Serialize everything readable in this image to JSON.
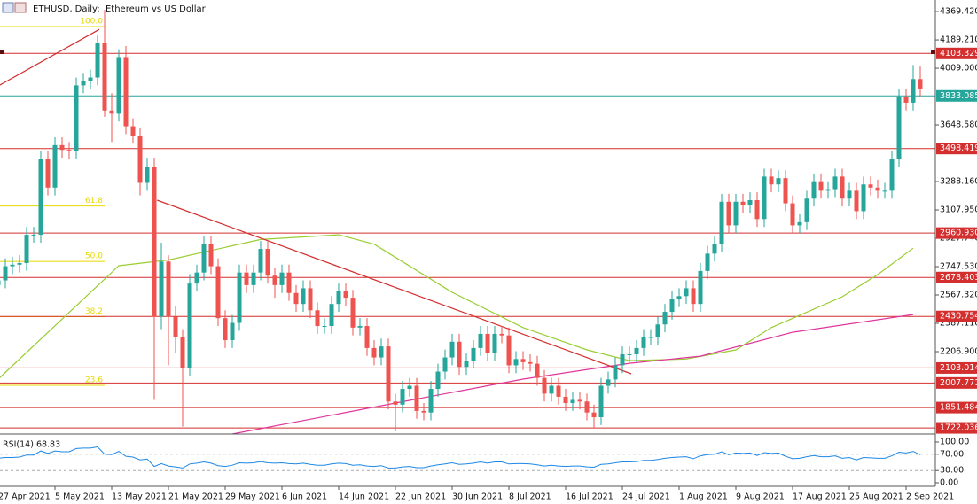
{
  "chart_data": {
    "type": "candlestick",
    "title": "ETHUSD, Daily:  Ethereum vs US Dollar",
    "bull_color": "#26a69a",
    "bear_color": "#ef5350",
    "xlim": [
      0.25,
      132.125
    ],
    "ylim": [
      1683,
      4443
    ],
    "xticks": [
      {
        "value": 0,
        "label": "27 Apr 2021"
      },
      {
        "value": 8,
        "label": "5 May 2021"
      },
      {
        "value": 16,
        "label": "13 May 2021"
      },
      {
        "value": 24,
        "label": "21 May 2021"
      },
      {
        "value": 32,
        "label": "29 May 2021"
      },
      {
        "value": 40,
        "label": "6 Jun 2021"
      },
      {
        "value": 48,
        "label": "14 Jun 2021"
      },
      {
        "value": 56,
        "label": "22 Jun 2021"
      },
      {
        "value": 64,
        "label": "30 Jun 2021"
      },
      {
        "value": 72,
        "label": "8 Jul 2021"
      },
      {
        "value": 80,
        "label": "16 Jul 2021"
      },
      {
        "value": 88,
        "label": "24 Jul 2021"
      },
      {
        "value": 96,
        "label": "1 Aug 2021"
      },
      {
        "value": 104,
        "label": "9 Aug 2021"
      },
      {
        "value": 112,
        "label": "17 Aug 2021"
      },
      {
        "value": 120,
        "label": "25 Aug 2021"
      },
      {
        "value": 128,
        "label": "2 Sep 2021"
      }
    ],
    "yticks": [
      {
        "value": 4369.42,
        "label": "4369.420"
      },
      {
        "value": 4189.21,
        "label": "4189.210"
      },
      {
        "value": 4009,
        "label": "4009.000"
      },
      {
        "value": 3648.58,
        "label": "3648.580"
      },
      {
        "value": 3288.16,
        "label": "3288.160"
      },
      {
        "value": 3107.95,
        "label": "3107.950"
      },
      {
        "value": 2927.74,
        "label": "2927.740"
      },
      {
        "value": 2747.53,
        "label": "2747.530"
      },
      {
        "value": 2567.32,
        "label": "2567.320"
      },
      {
        "value": 2387.11,
        "label": "2387.110"
      },
      {
        "value": 2206.9,
        "label": "2206.900"
      }
    ],
    "open": [
      2630,
      2660,
      2750,
      2760,
      2770,
      2950,
      2950,
      3430,
      3250,
      3520,
      3490,
      3480,
      3900,
      3930,
      3950,
      4170,
      3740,
      3720,
      4080,
      3640,
      3580,
      3280,
      3380,
      2430,
      2780,
      2430,
      2300,
      2100,
      2640,
      2710,
      2890,
      2750,
      2420,
      2280,
      2390,
      2710,
      2630,
      2710,
      2860,
      2690,
      2630,
      2710,
      2580,
      2510,
      2610,
      2470,
      2370,
      2370,
      2510,
      2590,
      2550,
      2360,
      2370,
      2230,
      2170,
      2240,
      1890,
      1870,
      1970,
      1990,
      1830,
      1820,
      1970,
      2080,
      2170,
      2270,
      2110,
      2150,
      2230,
      2320,
      2200,
      2320,
      2310,
      2120,
      2160,
      2140,
      2130,
      2040,
      1940,
      1990,
      1920,
      1880,
      1900,
      1890,
      1820,
      1790,
      1990,
      2030,
      2120,
      2190,
      2190,
      2230,
      2300,
      2300,
      2380,
      2460,
      2540,
      2560,
      2610,
      2510,
      2720,
      2830,
      2890,
      3160,
      3010,
      3160,
      3140,
      3170,
      3050,
      3320,
      3270,
      3310,
      3150,
      3010,
      3030,
      3180,
      3290,
      3230,
      3240,
      3320,
      3180,
      3230,
      3100,
      3270,
      3250,
      3230,
      3230,
      3430,
      3830,
      3790,
      3940
    ],
    "high": [
      2710,
      2800,
      2810,
      2820,
      3000,
      3000,
      3480,
      3480,
      3570,
      3570,
      3540,
      3950,
      3980,
      4000,
      4220,
      4380,
      3850,
      4130,
      4150,
      3690,
      3630,
      3440,
      3440,
      2900,
      2820,
      2500,
      2350,
      2700,
      2760,
      2940,
      2940,
      2800,
      2470,
      2440,
      2760,
      2760,
      2760,
      2910,
      2910,
      2740,
      2760,
      2760,
      2630,
      2660,
      2660,
      2520,
      2420,
      2560,
      2640,
      2640,
      2600,
      2420,
      2420,
      2280,
      2290,
      2290,
      1940,
      2020,
      2040,
      2040,
      1880,
      2020,
      2130,
      2220,
      2320,
      2320,
      2200,
      2280,
      2370,
      2370,
      2370,
      2370,
      2360,
      2210,
      2210,
      2190,
      2180,
      2090,
      2040,
      2040,
      1970,
      1950,
      1950,
      1940,
      1870,
      2040,
      2080,
      2170,
      2240,
      2240,
      2280,
      2350,
      2350,
      2430,
      2510,
      2590,
      2610,
      2660,
      2660,
      2770,
      2880,
      2940,
      3210,
      3210,
      3210,
      3210,
      3220,
      3220,
      3370,
      3370,
      3360,
      3360,
      3200,
      3080,
      3230,
      3340,
      3340,
      3290,
      3370,
      3370,
      3280,
      3280,
      3320,
      3320,
      3300,
      3280,
      3480,
      3880,
      3880,
      4030,
      4020
    ],
    "low": [
      2580,
      2610,
      2700,
      2710,
      2720,
      2900,
      2900,
      3200,
      3200,
      3440,
      3430,
      3430,
      3850,
      3880,
      3900,
      3700,
      3540,
      3670,
      3590,
      3530,
      3200,
      3230,
      1900,
      2350,
      2120,
      2200,
      1730,
      2050,
      2590,
      2660,
      2700,
      2370,
      2230,
      2230,
      2340,
      2580,
      2580,
      2660,
      2640,
      2550,
      2580,
      2530,
      2460,
      2460,
      2420,
      2320,
      2320,
      2320,
      2460,
      2500,
      2310,
      2310,
      2180,
      2120,
      2120,
      1840,
      1700,
      1820,
      1920,
      1780,
      1770,
      1770,
      1920,
      2030,
      2120,
      2060,
      2060,
      2100,
      2180,
      2150,
      2150,
      2260,
      2070,
      2070,
      2090,
      2080,
      1990,
      1890,
      1890,
      1870,
      1830,
      1830,
      1840,
      1770,
      1720,
      1740,
      1940,
      1980,
      2070,
      2140,
      2140,
      2180,
      2250,
      2250,
      2330,
      2410,
      2490,
      2510,
      2460,
      2460,
      2670,
      2780,
      2840,
      2960,
      2960,
      3090,
      3090,
      3000,
      3000,
      3220,
      3220,
      3100,
      2960,
      2960,
      2980,
      3130,
      3180,
      3180,
      3190,
      3130,
      3130,
      3050,
      3050,
      3200,
      3180,
      3180,
      3180,
      3380,
      3740,
      3740,
      3830
    ],
    "close": [
      2660,
      2750,
      2760,
      2770,
      2950,
      2950,
      3430,
      3250,
      3520,
      3490,
      3480,
      3900,
      3930,
      3950,
      4170,
      3740,
      3720,
      4080,
      3640,
      3580,
      3280,
      3380,
      2430,
      2780,
      2430,
      2300,
      2100,
      2640,
      2710,
      2890,
      2750,
      2420,
      2280,
      2390,
      2710,
      2630,
      2710,
      2860,
      2690,
      2630,
      2710,
      2580,
      2510,
      2610,
      2470,
      2370,
      2370,
      2510,
      2590,
      2550,
      2360,
      2370,
      2230,
      2170,
      2240,
      1890,
      1870,
      1970,
      1990,
      1830,
      1820,
      1970,
      2080,
      2170,
      2270,
      2110,
      2150,
      2230,
      2320,
      2200,
      2320,
      2310,
      2120,
      2160,
      2140,
      2130,
      2040,
      1940,
      1990,
      1920,
      1880,
      1900,
      1890,
      1820,
      1790,
      1990,
      2030,
      2120,
      2190,
      2190,
      2230,
      2300,
      2300,
      2380,
      2460,
      2540,
      2560,
      2610,
      2510,
      2720,
      2830,
      2890,
      3160,
      3010,
      3160,
      3140,
      3170,
      3050,
      3320,
      3270,
      3310,
      3150,
      3010,
      3030,
      3180,
      3290,
      3230,
      3240,
      3320,
      3180,
      3230,
      3100,
      3270,
      3250,
      3230,
      3230,
      3430,
      3830,
      3790,
      3940,
      3880
    ],
    "levels": [
      {
        "value": 4103.329,
        "color": "#d32f2f"
      },
      {
        "value": 3833.085,
        "color": "#26a69a"
      },
      {
        "value": 3498.419,
        "color": "#d32f2f"
      },
      {
        "value": 2960.93,
        "label": "2960.930",
        "color": "#d32f2f"
      },
      {
        "value": 2678.403,
        "color": "#d32f2f"
      },
      {
        "value": 2430.754,
        "color": "#d32f2f"
      },
      {
        "value": 2103.014,
        "color": "#d32f2f"
      },
      {
        "value": 2007.771,
        "color": "#d32f2f"
      },
      {
        "value": 1851.484,
        "color": "#d32f2f"
      },
      {
        "value": 1722.036,
        "color": "#d32f2f"
      }
    ],
    "fib_color": "#e8d800",
    "fib_levels": [
      {
        "label": "100.0",
        "value": 4274
      },
      {
        "label": "61.8",
        "value": 3133
      },
      {
        "label": "50.0",
        "value": 2781
      },
      {
        "label": "38.2",
        "value": 2429
      },
      {
        "label": "23.6",
        "value": 1993
      }
    ],
    "moving_averages": [
      {
        "color": "#9acd32",
        "x": [
          0,
          17,
          24,
          37,
          48,
          53,
          64,
          74,
          83,
          89,
          97,
          104,
          109,
          119,
          124,
          129
        ],
        "values": [
          2032,
          2753,
          2790,
          2920,
          2950,
          2890,
          2584,
          2360,
          2218,
          2150,
          2160,
          2218,
          2360,
          2556,
          2697,
          2865
        ]
      },
      {
        "color": "#e0359c",
        "x": [
          33,
          56,
          74,
          89,
          99,
          112,
          129
        ],
        "values": [
          1683,
          1880,
          2032,
          2133,
          2178,
          2330,
          2443
        ]
      }
    ],
    "trendlines": [
      {
        "color": "#d32f2f",
        "x": [
          0,
          14.25
        ],
        "values": [
          3896,
          4256
        ]
      },
      {
        "color": "#d32f2f",
        "x": [
          22.4,
          89.25
        ],
        "values": [
          3170,
          2066
        ]
      }
    ],
    "rsi": {
      "title": "RSI(14) 68.83",
      "color": "#1e88e5",
      "ylim": [
        -6.5,
        115.2
      ],
      "yticks": [
        {
          "value": 100,
          "label": "100.00"
        },
        {
          "value": 70,
          "label": "70.00",
          "line": true
        },
        {
          "value": 30,
          "label": "30.00",
          "line": true
        },
        {
          "value": 0,
          "label": "0.00"
        }
      ],
      "values": [
        60,
        62,
        62,
        63,
        68,
        68,
        78,
        72,
        78,
        76,
        76,
        84,
        85,
        85,
        88,
        70,
        69,
        77,
        65,
        63,
        56,
        58,
        40,
        47,
        41,
        39,
        36,
        46,
        48,
        51,
        48,
        42,
        40,
        43,
        49,
        48,
        49,
        52,
        49,
        48,
        49,
        47,
        46,
        48,
        45,
        43,
        43,
        46,
        48,
        47,
        43,
        44,
        41,
        40,
        42,
        36,
        36,
        39,
        40,
        37,
        37,
        41,
        44,
        46,
        49,
        45,
        46,
        48,
        51,
        48,
        51,
        51,
        46,
        47,
        47,
        46,
        44,
        41,
        43,
        41,
        40,
        41,
        41,
        39,
        38,
        45,
        46,
        49,
        51,
        51,
        52,
        55,
        55,
        57,
        60,
        62,
        63,
        64,
        59,
        66,
        69,
        70,
        76,
        69,
        73,
        72,
        73,
        67,
        74,
        72,
        73,
        65,
        59,
        60,
        64,
        67,
        64,
        64,
        66,
        60,
        62,
        56,
        62,
        61,
        60,
        60,
        66,
        75,
        73,
        77,
        68.83
      ]
    }
  }
}
